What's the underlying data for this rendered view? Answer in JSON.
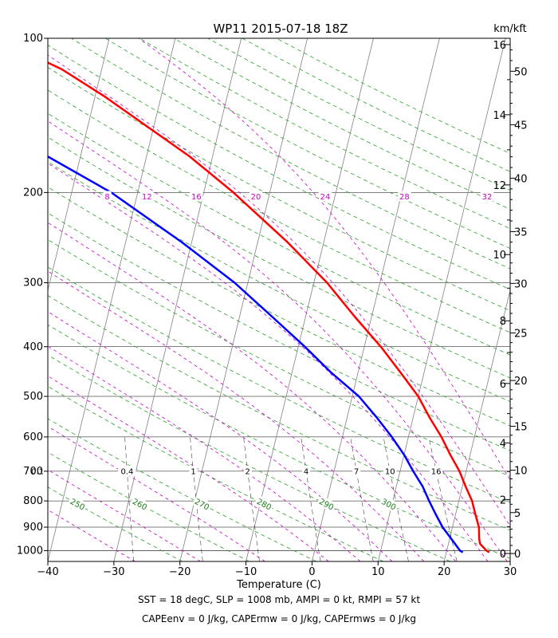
{
  "chart_data": {
    "type": "line",
    "title": "WP11 2015-07-18 18Z",
    "xlabel": "Temperature (C)",
    "right_axis_label": "km/kft",
    "xlim": [
      -40,
      30
    ],
    "ylim_hpa": [
      1050,
      100
    ],
    "x_ticks": [
      -40,
      -30,
      -20,
      -10,
      0,
      10,
      20,
      30
    ],
    "x_tick_labels": [
      "−40",
      "−30",
      "−20",
      "−10",
      "0",
      "10",
      "20",
      "30"
    ],
    "p_ticks": [
      100,
      200,
      300,
      400,
      500,
      600,
      700,
      800,
      900,
      1000
    ],
    "km_ticks": [
      0,
      2,
      4,
      6,
      8,
      10,
      12,
      14,
      16
    ],
    "kft_ticks": [
      0,
      5,
      10,
      15,
      20,
      25,
      30,
      35,
      40,
      45,
      50
    ],
    "isotherms": [
      -110,
      -100,
      -90,
      -80,
      -70,
      -60,
      -50,
      -40,
      -30,
      -20,
      -10,
      0,
      10,
      20,
      30
    ],
    "dry_adiabats": [
      250,
      260,
      270,
      280,
      290,
      300,
      310,
      320,
      330,
      340,
      350,
      360,
      370,
      380,
      390,
      400,
      410,
      420,
      430,
      440,
      450,
      460,
      470,
      480
    ],
    "dry_adiabat_labels": [
      {
        "theta": 250,
        "text": "250"
      },
      {
        "theta": 260,
        "text": "260"
      },
      {
        "theta": 270,
        "text": "270"
      },
      {
        "theta": 280,
        "text": "280"
      },
      {
        "theta": 290,
        "text": "290"
      },
      {
        "theta": 300,
        "text": "300"
      }
    ],
    "moist_adiabat_labels": [
      {
        "text": "8",
        "t": -31
      },
      {
        "text": "12",
        "t": -25
      },
      {
        "text": "16",
        "t": -17.5
      },
      {
        "text": "20",
        "t": -8.5
      },
      {
        "text": "24",
        "t": 2
      },
      {
        "text": "28",
        "t": 14
      },
      {
        "text": "32",
        "t": 26.5
      }
    ],
    "mixing_ratio_labels": [
      {
        "w": 0.1,
        "text": "0.1"
      },
      {
        "w": 0.4,
        "text": "0.4"
      },
      {
        "w": 1,
        "text": "1"
      },
      {
        "w": 2,
        "text": "2"
      },
      {
        "w": 4,
        "text": "4"
      },
      {
        "w": 7,
        "text": "7"
      },
      {
        "w": 10,
        "text": "10"
      },
      {
        "w": 16,
        "text": "16"
      }
    ],
    "series": [
      {
        "name": "Temperature",
        "color": "#ff0000",
        "points": [
          [
            1008,
            26.5
          ],
          [
            1000,
            26.0
          ],
          [
            970,
            24.8
          ],
          [
            950,
            24.5
          ],
          [
            900,
            24.0
          ],
          [
            850,
            23.0
          ],
          [
            800,
            22.0
          ],
          [
            750,
            20.5
          ],
          [
            700,
            19.0
          ],
          [
            650,
            17.0
          ],
          [
            600,
            15.0
          ],
          [
            550,
            12.5
          ],
          [
            500,
            10.0
          ],
          [
            450,
            6.5
          ],
          [
            400,
            2.5
          ],
          [
            350,
            -2.5
          ],
          [
            300,
            -8.0
          ],
          [
            250,
            -15.5
          ],
          [
            200,
            -25.5
          ],
          [
            170,
            -33.5
          ],
          [
            150,
            -40.5
          ],
          [
            130,
            -48.5
          ],
          [
            115,
            -56.0
          ],
          [
            100,
            -67.0
          ]
        ]
      },
      {
        "name": "Dewpoint",
        "color": "#0000ff",
        "points": [
          [
            1008,
            22.5
          ],
          [
            1000,
            22.0
          ],
          [
            970,
            21.0
          ],
          [
            900,
            18.5
          ],
          [
            850,
            17.0
          ],
          [
            800,
            15.5
          ],
          [
            750,
            14.0
          ],
          [
            700,
            12.0
          ],
          [
            650,
            10.0
          ],
          [
            600,
            7.5
          ],
          [
            550,
            4.5
          ],
          [
            500,
            1.0
          ],
          [
            450,
            -4.0
          ],
          [
            400,
            -9.0
          ],
          [
            350,
            -15.0
          ],
          [
            300,
            -22.0
          ],
          [
            250,
            -31.5
          ],
          [
            200,
            -44.0
          ],
          [
            170,
            -55.0
          ],
          [
            150,
            -64.0
          ],
          [
            130,
            -74.0
          ],
          [
            115,
            -83.0
          ],
          [
            100,
            -93.0
          ]
        ]
      }
    ]
  },
  "captions": {
    "line1": "SST = 18 degC, SLP = 1008 mb, AMPI = 0 kt, RMPI = 57 kt",
    "line2": "CAPEenv = 0 J/kg, CAPErmw = 0 J/kg, CAPErmws = 0 J/kg"
  },
  "colors": {
    "temperature": "#ff0000",
    "dewpoint": "#0000ff",
    "dry_adiabat": "#2ca02c",
    "moist_adiabat": "#cc00cc",
    "mixing_ratio": "#000000",
    "isotherm": "#808080",
    "isobar": "#000000"
  }
}
